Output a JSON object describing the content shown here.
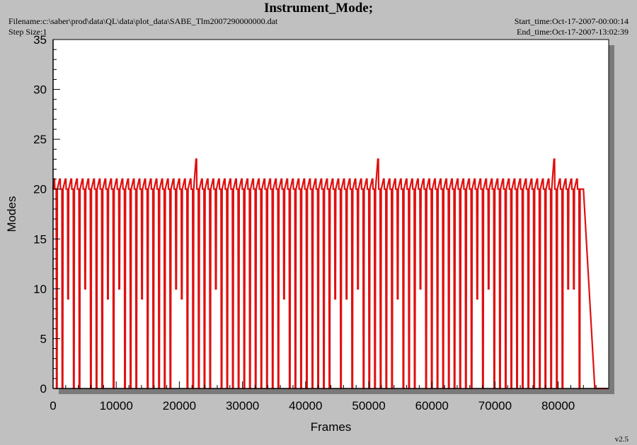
{
  "header": {
    "title": "Instrument_Mode;",
    "filename": "Filename:c:\\saber\\prod\\data\\QL\\data\\plot_data\\SABE_Tlm2007290000000.dat",
    "step_size": "Step Size:1",
    "start_time": "Start_time:Oct-17-2007-00:00:14",
    "end_time": "End_time:Oct-17-2007-13:02:39"
  },
  "footer": {
    "version": "v2.5"
  },
  "colors": {
    "series": "#e01010",
    "plot_bg": "#ffffff",
    "page_bg": "#c0c0c0",
    "shadow": "#7a7a7a"
  },
  "chart_data": {
    "type": "line",
    "title": "Instrument_Mode;",
    "xlabel": "Frames",
    "ylabel": "Modes",
    "xlim": [
      0,
      88000
    ],
    "ylim": [
      0,
      35
    ],
    "xticks": [
      "0",
      "10000",
      "20000",
      "30000",
      "40000",
      "50000",
      "60000",
      "70000",
      "80000"
    ],
    "yticks": [
      "0",
      "5",
      "10",
      "15",
      "20",
      "25",
      "30",
      "35"
    ],
    "grid": false,
    "series": [
      {
        "baseline_mode": 20,
        "high_mode": 21,
        "low_mode": 0,
        "oscillation_period_frames": 900,
        "x_range": [
          0,
          84000
        ],
        "spikes_to_23": [
          22800,
          51200,
          79500
        ],
        "dips_to_10": [
          4300,
          9700,
          18600,
          25300,
          48100,
          57200,
          68200,
          80800,
          82100
        ],
        "dips_to_9": [
          1400,
          7700,
          13700,
          20200,
          35900,
          44000,
          46100,
          54400,
          66400
        ],
        "trailing_points": [
          [
            84000,
            20
          ],
          [
            85800,
            0
          ],
          [
            87800,
            0
          ]
        ]
      }
    ]
  }
}
